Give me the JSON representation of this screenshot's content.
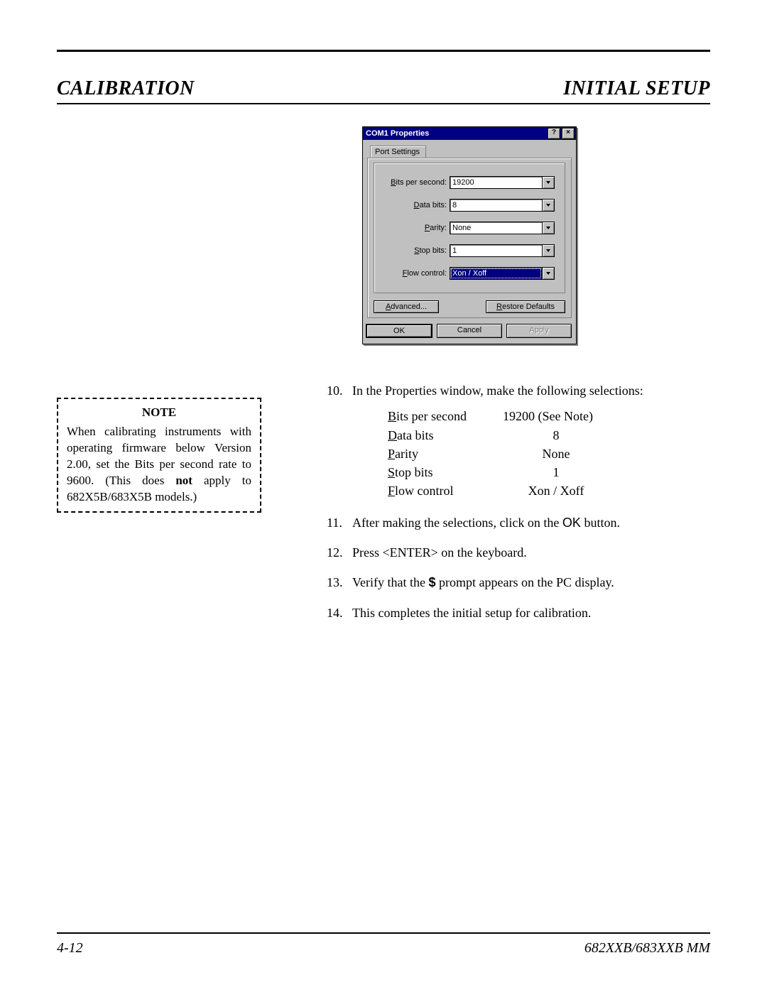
{
  "header": {
    "left": "CALIBRATION",
    "right": "INITIAL SETUP"
  },
  "dialog": {
    "title": "COM1 Properties",
    "help_btn": "?",
    "close_btn": "×",
    "tab_label": "Port Settings",
    "fields": {
      "bits_per_second": {
        "label_pre": "B",
        "label_post": "its per second:",
        "value": "19200"
      },
      "data_bits": {
        "label_pre": "D",
        "label_post": "ata bits:",
        "value": "8"
      },
      "parity": {
        "label_pre": "P",
        "label_post": "arity:",
        "value": "None"
      },
      "stop_bits": {
        "label_pre": "S",
        "label_post": "top bits:",
        "value": "1"
      },
      "flow_control": {
        "label_pre": "F",
        "label_post": "low control:",
        "value": "Xon / Xoff"
      }
    },
    "buttons": {
      "advanced": "Advanced...",
      "restore": "Restore Defaults",
      "ok": "OK",
      "cancel": "Cancel",
      "apply": "Apply"
    }
  },
  "note": {
    "title": "NOTE",
    "body_pre": "When calibrating instruments with operating firmware below Version 2.00, set the Bits per second rate to 9600. (This does ",
    "body_bold": "not",
    "body_post": " apply to 682X5B/683X5B models.)"
  },
  "steps": {
    "s10_a": "In the Properties window, make the following selections:",
    "table": {
      "r1k_u": "B",
      "r1k": "its per second",
      "r1v": "19200 (See Note)",
      "r2k_u": "D",
      "r2k": "ata bits",
      "r2v": "8",
      "r3k_u": "P",
      "r3k": "arity",
      "r3v": "None",
      "r4k_u": "S",
      "r4k": "top bits",
      "r4v": "1",
      "r5k_u": "F",
      "r5k": "low control",
      "r5v": "Xon / Xoff"
    },
    "s11_a": "After making the selections, click on the ",
    "s11_b": "OK",
    "s11_c": " button.",
    "s12": "Press <ENTER> on the keyboard.",
    "s13_a": "Verify that the ",
    "s13_b": "$",
    "s13_c": " prompt appears on the PC display.",
    "s14": "This completes the initial setup for calibration."
  },
  "footer": {
    "left": "4-12",
    "right": "682XXB/683XXB MM"
  },
  "colors": {
    "page_bg": "#ffffff",
    "text": "#000000",
    "win_bg": "#c0c0c0",
    "win_titlebar": "#000080",
    "win_highlight_bg": "#000080",
    "win_btn_shadow": "#808080",
    "win_disabled_text": "#808080"
  }
}
